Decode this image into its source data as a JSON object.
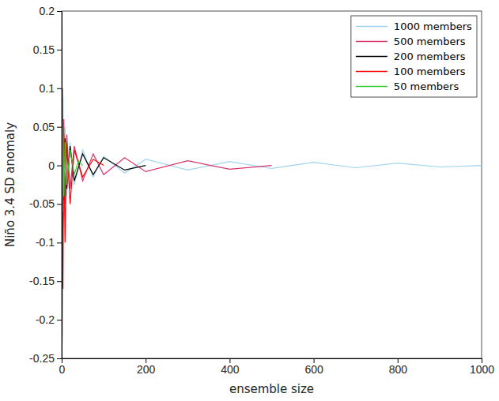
{
  "chart_data": {
    "type": "line",
    "x_label": "ensemble size",
    "y_label": "Niño 3.4 SD anomaly",
    "xlim": [
      0,
      1000
    ],
    "xticks": [
      0,
      200,
      400,
      600,
      800,
      1000
    ],
    "ylim": [
      -0.25,
      0.2
    ],
    "yticks": [
      -0.25,
      -0.2,
      -0.15,
      -0.1,
      -0.05,
      0,
      0.05,
      0.1,
      0.15,
      0.2
    ],
    "legend": "upper right",
    "series": [
      {
        "name": "1000 members",
        "color": "#9fd3ee",
        "x": [
          1,
          2,
          3,
          5,
          8,
          12,
          20,
          30,
          50,
          75,
          100,
          150,
          200,
          300,
          400,
          500,
          600,
          700,
          800,
          900,
          1000
        ],
        "values": [
          0.18,
          -0.12,
          0.09,
          -0.07,
          0.05,
          -0.04,
          0.03,
          -0.025,
          0.02,
          -0.015,
          0.012,
          -0.01,
          0.008,
          -0.006,
          0.005,
          -0.004,
          0.004,
          -0.003,
          0.003,
          -0.002,
          0
        ]
      },
      {
        "name": "500 members",
        "color": "#d6336c",
        "x": [
          1,
          2,
          3,
          5,
          8,
          12,
          20,
          30,
          50,
          75,
          100,
          150,
          200,
          300,
          400,
          500
        ],
        "values": [
          -0.22,
          0.1,
          -0.08,
          0.06,
          -0.05,
          0.04,
          -0.03,
          0.025,
          -0.02,
          0.015,
          -0.012,
          0.01,
          -0.008,
          0.006,
          -0.005,
          0
        ]
      },
      {
        "name": "200 members",
        "color": "#000000",
        "x": [
          1,
          2,
          3,
          5,
          8,
          12,
          20,
          30,
          50,
          75,
          100,
          150,
          200
        ],
        "values": [
          0.06,
          -0.08,
          0.05,
          -0.045,
          0.035,
          -0.03,
          0.025,
          -0.02,
          0.015,
          -0.012,
          0.01,
          -0.006,
          0
        ]
      },
      {
        "name": "100 members",
        "color": "#ff0000",
        "x": [
          1,
          2,
          3,
          5,
          8,
          12,
          20,
          30,
          50,
          75,
          100
        ],
        "values": [
          -0.23,
          0.05,
          -0.16,
          0.04,
          -0.1,
          0.03,
          -0.05,
          0.02,
          -0.015,
          0.008,
          0
        ]
      },
      {
        "name": "50 members",
        "color": "#33cc33",
        "x": [
          1,
          2,
          3,
          5,
          8,
          12,
          20,
          30,
          40,
          50
        ],
        "values": [
          0.07,
          -0.06,
          0.05,
          -0.04,
          0.03,
          -0.025,
          0.02,
          -0.012,
          0.006,
          0
        ]
      }
    ]
  }
}
